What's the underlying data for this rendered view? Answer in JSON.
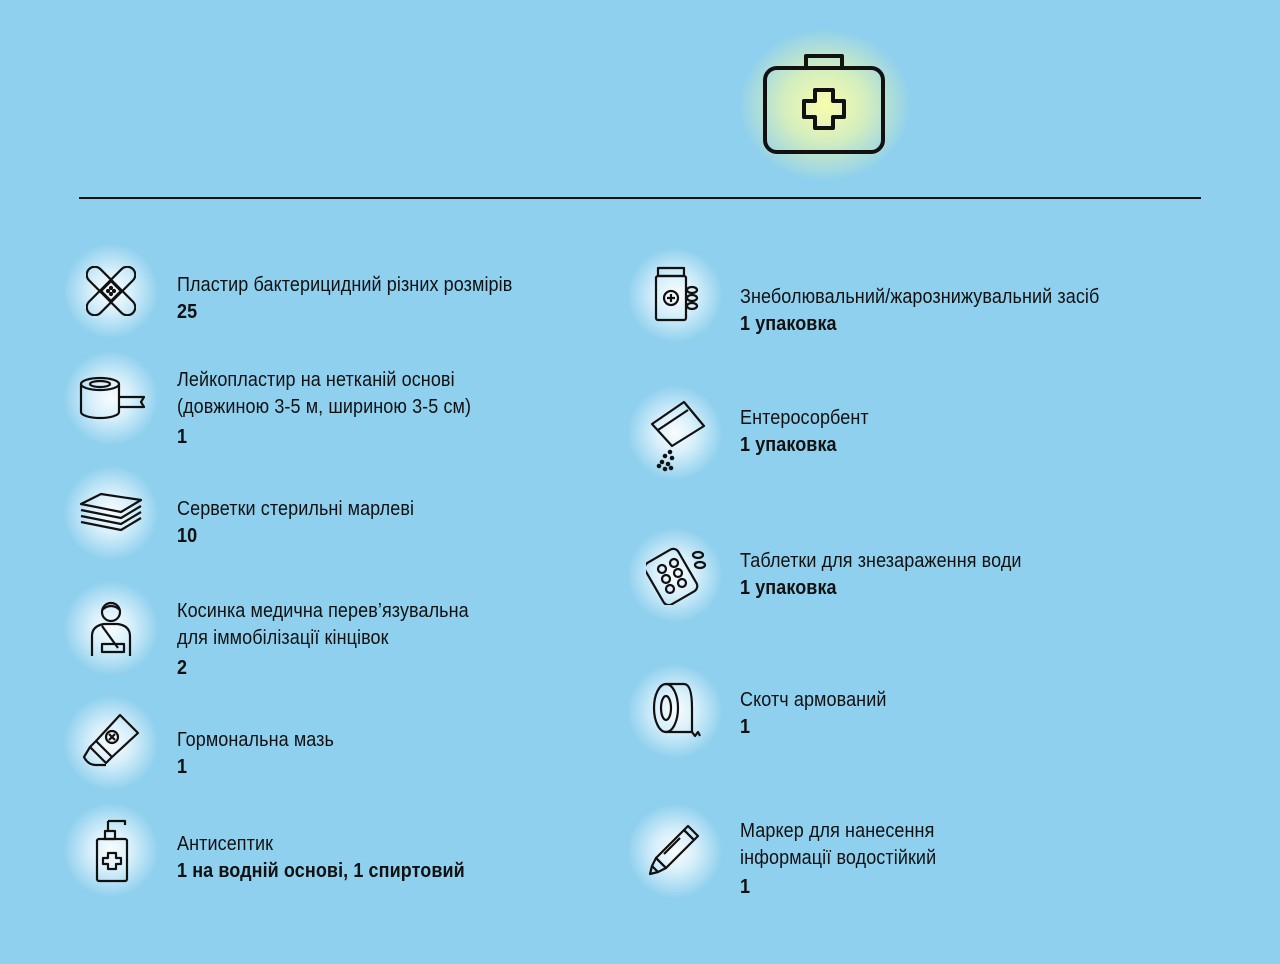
{
  "header": {
    "kit_icon": "first-aid-kit-icon"
  },
  "left_items": [
    {
      "icon": "bandage-icon",
      "label_lines": [
        "Пластир бактерицидний різних розмірів"
      ],
      "quantity": "25"
    },
    {
      "icon": "adhesive-tape-roll-icon",
      "label_lines": [
        "Лейкопластир на нетканій основі",
        "(довжиною 3-5 м, шириною 3-5 см)"
      ],
      "quantity": "1"
    },
    {
      "icon": "gauze-napkins-icon",
      "label_lines": [
        "Серветки стерильні марлеві"
      ],
      "quantity": "10"
    },
    {
      "icon": "arm-sling-icon",
      "label_lines": [
        "Косинка медична перев’язувальна",
        "для іммобілізації кінцівок"
      ],
      "quantity": "2"
    },
    {
      "icon": "ointment-tube-icon",
      "label_lines": [
        "Гормональна мазь"
      ],
      "quantity": "1"
    },
    {
      "icon": "antiseptic-bottle-icon",
      "label_lines": [
        "Антисептик"
      ],
      "quantity": "1 на водній основі, 1 спиртовий"
    }
  ],
  "right_items": [
    {
      "icon": "pill-bottle-icon",
      "label_lines": [
        "Знеболювальний/жарознижувальний засіб"
      ],
      "quantity": "1 упаковка"
    },
    {
      "icon": "powder-sachet-icon",
      "label_lines": [
        "Ентеросорбент"
      ],
      "quantity": "1 упаковка"
    },
    {
      "icon": "tablet-blister-icon",
      "label_lines": [
        "Таблетки для знезараження води"
      ],
      "quantity": "1 упаковка"
    },
    {
      "icon": "duct-tape-icon",
      "label_lines": [
        "Скотч армований"
      ],
      "quantity": "1"
    },
    {
      "icon": "marker-pen-icon",
      "label_lines": [
        "Маркер для нанесення",
        "інформації водостійкий"
      ],
      "quantity": "1"
    }
  ]
}
